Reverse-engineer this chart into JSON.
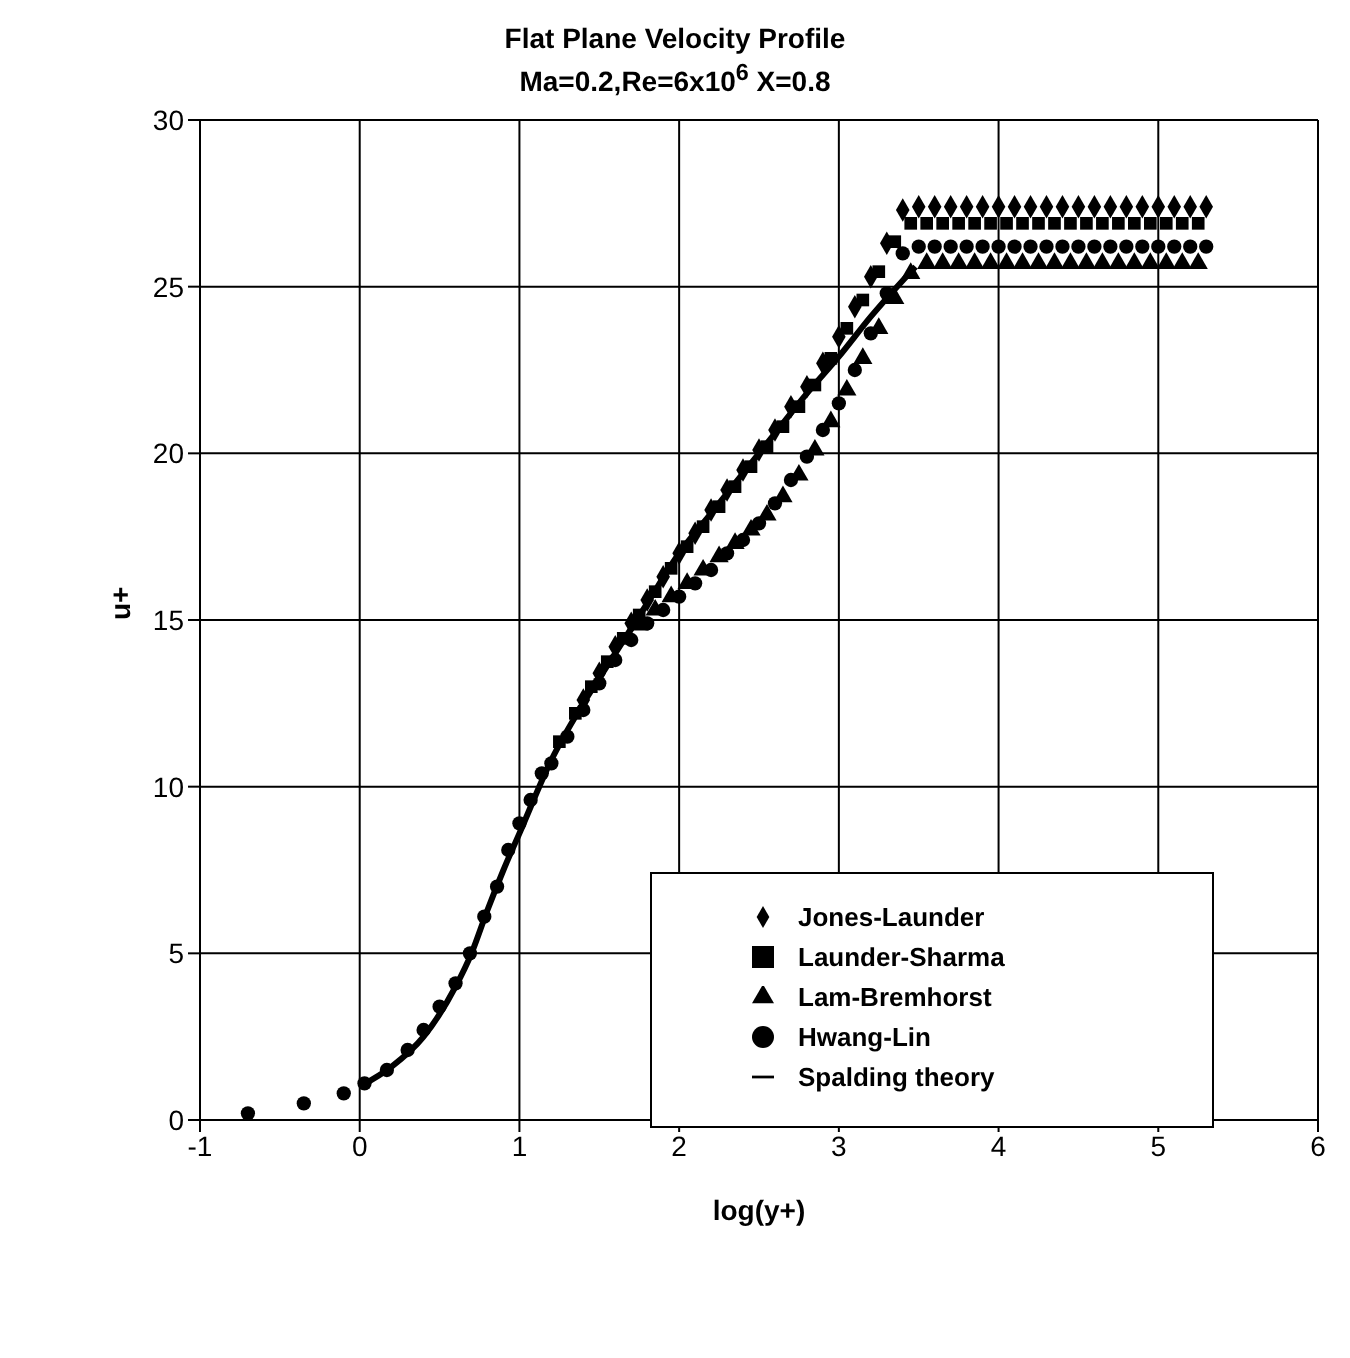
{
  "chart_data": {
    "type": "scatter",
    "title": "Flat Plane Velocity Profile",
    "subtitle": "Ma=0.2,Re=6x10$^{6}$ X=0.8",
    "xlabel": "log(y+)",
    "ylabel": "u+",
    "xlim": [
      -1,
      6
    ],
    "xticks": [
      -1,
      0,
      1,
      2,
      3,
      4,
      5,
      6
    ],
    "ylim": [
      0,
      30
    ],
    "yticks": [
      0,
      5,
      10,
      15,
      20,
      25,
      30
    ],
    "grid": true,
    "legend": "bottom right",
    "series": [
      {
        "name": "Jones-Launder",
        "color": "#000000",
        "marker": "diamond",
        "x": [
          1.4,
          1.5,
          1.6,
          1.7,
          1.8,
          1.9,
          2.0,
          2.1,
          2.2,
          2.3,
          2.4,
          2.5,
          2.6,
          2.7,
          2.8,
          2.9,
          3.0,
          3.1,
          3.2,
          3.3,
          3.4,
          3.5,
          3.6,
          3.7,
          3.8,
          3.9,
          4.0,
          4.1,
          4.2,
          4.3,
          4.4,
          4.5,
          4.6,
          4.7,
          4.8,
          4.9,
          5.0,
          5.1,
          5.2,
          5.3
        ],
        "values": [
          12.6,
          13.4,
          14.2,
          14.9,
          15.6,
          16.3,
          17.0,
          17.6,
          18.3,
          18.9,
          19.5,
          20.1,
          20.7,
          21.4,
          22.0,
          22.7,
          23.5,
          24.4,
          25.3,
          26.3,
          27.3,
          27.4,
          27.4,
          27.4,
          27.4,
          27.4,
          27.4,
          27.4,
          27.4,
          27.4,
          27.4,
          27.4,
          27.4,
          27.4,
          27.4,
          27.4,
          27.4,
          27.4,
          27.4,
          27.4
        ]
      },
      {
        "name": "Launder-Sharma",
        "color": "#000000",
        "marker": "square",
        "x": [
          1.25,
          1.35,
          1.45,
          1.55,
          1.65,
          1.75,
          1.85,
          1.95,
          2.05,
          2.15,
          2.25,
          2.35,
          2.45,
          2.55,
          2.65,
          2.75,
          2.85,
          2.95,
          3.05,
          3.15,
          3.25,
          3.35,
          3.45,
          3.55,
          3.65,
          3.75,
          3.85,
          3.95,
          4.05,
          4.15,
          4.25,
          4.35,
          4.45,
          4.55,
          4.65,
          4.75,
          4.85,
          4.95,
          5.05,
          5.15,
          5.25
        ],
        "values": [
          11.35,
          12.2,
          13.0,
          13.75,
          14.45,
          15.15,
          15.85,
          16.55,
          17.2,
          17.8,
          18.4,
          19.0,
          19.6,
          20.2,
          20.8,
          21.4,
          22.05,
          22.85,
          23.75,
          24.6,
          25.45,
          26.35,
          26.9,
          26.9,
          26.9,
          26.9,
          26.9,
          26.9,
          26.9,
          26.9,
          26.9,
          26.9,
          26.9,
          26.9,
          26.9,
          26.9,
          26.9,
          26.9,
          26.9,
          26.9,
          26.9
        ]
      },
      {
        "name": "Lam-Bremhorst",
        "color": "#000000",
        "marker": "triangle",
        "x": [
          1.75,
          1.85,
          1.95,
          2.05,
          2.15,
          2.25,
          2.35,
          2.45,
          2.55,
          2.65,
          2.75,
          2.85,
          2.95,
          3.05,
          3.15,
          3.25,
          3.35,
          3.45,
          3.55,
          3.65,
          3.75,
          3.85,
          3.95,
          4.05,
          4.15,
          4.25,
          4.35,
          4.45,
          4.55,
          4.65,
          4.75,
          4.85,
          4.95,
          5.05,
          5.15,
          5.25
        ],
        "values": [
          14.85,
          15.3,
          15.7,
          16.1,
          16.5,
          16.9,
          17.3,
          17.7,
          18.15,
          18.7,
          19.35,
          20.1,
          20.95,
          21.9,
          22.85,
          23.75,
          24.65,
          25.4,
          25.7,
          25.7,
          25.7,
          25.7,
          25.7,
          25.7,
          25.7,
          25.7,
          25.7,
          25.7,
          25.7,
          25.7,
          25.7,
          25.7,
          25.7,
          25.7,
          25.7,
          25.7
        ]
      },
      {
        "name": "Hwang-Lin",
        "color": "#000000",
        "marker": "circle",
        "x": [
          -0.7,
          -0.35,
          -0.1,
          0.03,
          0.17,
          0.3,
          0.4,
          0.5,
          0.6,
          0.69,
          0.78,
          0.86,
          0.93,
          1.0,
          1.07,
          1.14,
          1.2,
          1.3,
          1.4,
          1.5,
          1.6,
          1.7,
          1.8,
          1.9,
          2.0,
          2.1,
          2.2,
          2.3,
          2.4,
          2.5,
          2.6,
          2.7,
          2.8,
          2.9,
          3.0,
          3.1,
          3.2,
          3.3,
          3.4,
          3.5,
          3.6,
          3.7,
          3.8,
          3.9,
          4.0,
          4.1,
          4.2,
          4.3,
          4.4,
          4.5,
          4.6,
          4.7,
          4.8,
          4.9,
          5.0,
          5.1,
          5.2,
          5.3
        ],
        "values": [
          0.2,
          0.5,
          0.8,
          1.1,
          1.5,
          2.1,
          2.7,
          3.4,
          4.1,
          5.0,
          6.1,
          7.0,
          8.1,
          8.9,
          9.6,
          10.4,
          10.7,
          11.5,
          12.3,
          13.1,
          13.8,
          14.4,
          14.9,
          15.3,
          15.7,
          16.1,
          16.5,
          17.0,
          17.4,
          17.9,
          18.5,
          19.2,
          19.9,
          20.7,
          21.5,
          22.5,
          23.6,
          24.8,
          26.0,
          26.2,
          26.2,
          26.2,
          26.2,
          26.2,
          26.2,
          26.2,
          26.2,
          26.2,
          26.2,
          26.2,
          26.2,
          26.2,
          26.2,
          26.2,
          26.2,
          26.2,
          26.2,
          26.2
        ]
      },
      {
        "name": "Spalding theory",
        "color": "#000000",
        "type": "line",
        "marker": "none",
        "x": [
          0,
          0.2,
          0.4,
          0.6,
          0.7,
          0.8,
          0.9,
          1.0,
          1.2,
          1.4,
          1.6,
          1.8,
          2.0,
          2.2,
          2.4,
          2.6,
          2.8,
          3.0,
          3.2,
          3.48
        ],
        "values": [
          1.0,
          1.6,
          2.5,
          4.0,
          5.0,
          6.3,
          7.5,
          8.6,
          10.8,
          12.5,
          14.0,
          15.5,
          17.0,
          18.2,
          19.4,
          20.6,
          21.8,
          22.9,
          24.1,
          25.6
        ]
      }
    ]
  }
}
